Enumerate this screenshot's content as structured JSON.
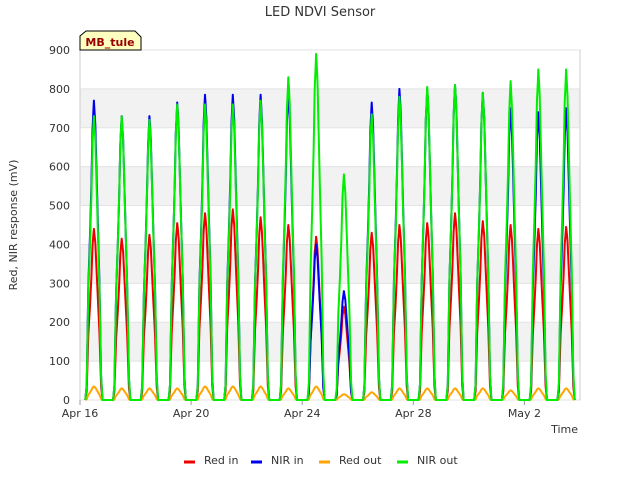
{
  "chart_data": {
    "type": "line",
    "title": "LED NDVI Sensor",
    "xlabel": "Time",
    "ylabel": "Red, NIR response (mV)",
    "badge": "MB_tule",
    "ylim": [
      0,
      900
    ],
    "xlim": [
      "2024-04-16",
      "2024-05-04"
    ],
    "y_ticks": [
      0,
      100,
      200,
      300,
      400,
      500,
      600,
      700,
      800,
      900
    ],
    "x_ticks": [
      {
        "date": "2024-04-16",
        "label": "Apr 16"
      },
      {
        "date": "2024-04-20",
        "label": "Apr 20"
      },
      {
        "date": "2024-04-24",
        "label": "Apr 24"
      },
      {
        "date": "2024-04-28",
        "label": "Apr 28"
      },
      {
        "date": "2024-05-02",
        "label": "May 2"
      }
    ],
    "grid": true,
    "legend_position": "bottom",
    "x": [
      "2024-04-16T12:00",
      "2024-04-17T12:00",
      "2024-04-18T12:00",
      "2024-04-19T12:00",
      "2024-04-20T12:00",
      "2024-04-21T12:00",
      "2024-04-22T12:00",
      "2024-04-23T12:00",
      "2024-04-24T12:00",
      "2024-04-25T12:00",
      "2024-04-26T12:00",
      "2024-04-27T12:00",
      "2024-04-28T12:00",
      "2024-04-29T12:00",
      "2024-04-30T12:00",
      "2024-05-01T12:00",
      "2024-05-02T12:00",
      "2024-05-03T12:00"
    ],
    "series": [
      {
        "name": "Red in",
        "color": "#ee0000",
        "values": [
          440,
          415,
          425,
          455,
          480,
          490,
          470,
          450,
          420,
          240,
          430,
          450,
          455,
          480,
          460,
          450,
          440,
          445
        ]
      },
      {
        "name": "NIR in",
        "color": "#0000ee",
        "values": [
          770,
          730,
          730,
          765,
          785,
          785,
          785,
          795,
          400,
          280,
          765,
          800,
          800,
          810,
          790,
          750,
          740,
          750
        ]
      },
      {
        "name": "Red out",
        "color": "#ffa500",
        "values": [
          35,
          30,
          30,
          30,
          35,
          35,
          35,
          30,
          35,
          15,
          20,
          30,
          30,
          30,
          30,
          25,
          30,
          30
        ]
      },
      {
        "name": "NIR out",
        "color": "#00ee00",
        "values": [
          730,
          730,
          720,
          760,
          760,
          760,
          770,
          830,
          890,
          580,
          735,
          780,
          805,
          810,
          790,
          820,
          850,
          850
        ]
      }
    ]
  }
}
